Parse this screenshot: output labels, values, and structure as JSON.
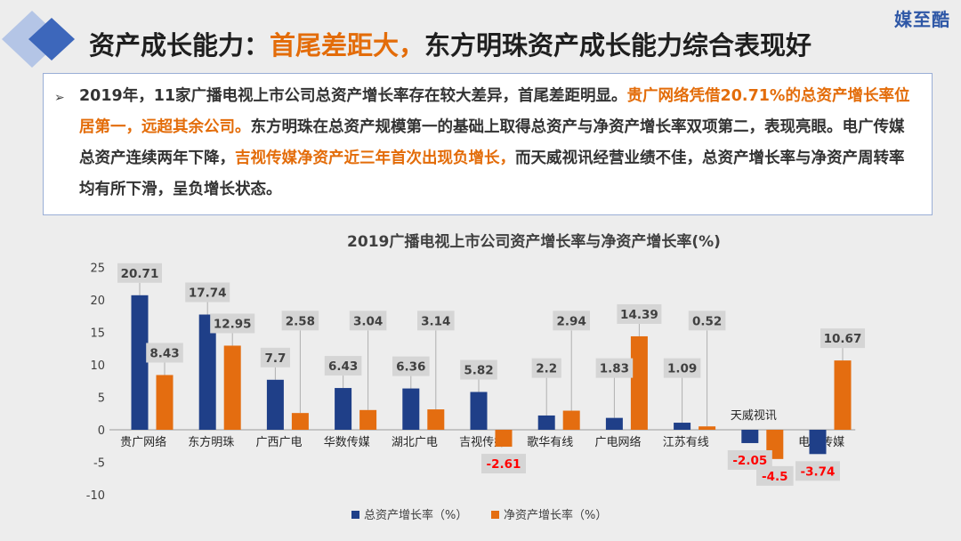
{
  "brand": "媒至酷",
  "slide_title": {
    "prefix": "资产成长能力：",
    "highlight": "首尾差距大，",
    "suffix": "东方明珠资产成长能力综合表现好"
  },
  "summary": {
    "bullet": "➢",
    "segments": [
      {
        "text": "2019年，11家广播电视上市公司总资产增长率存在较大差异，首尾差距明显。",
        "highlight": false
      },
      {
        "text": "贵广网络凭借20.71%的总资产增长率位居第一，远超其余公司。",
        "highlight": true
      },
      {
        "text": "东方明珠在总资产规模第一的基础上取得总资产与净资产增长率双项第二，表现亮眼。电广传媒总资产连续两年下降，",
        "highlight": false
      },
      {
        "text": "吉视传媒净资产近三年首次出现负增长，",
        "highlight": true
      },
      {
        "text": "而天威视讯经营业绩不佳，总资产增长率与净资产周转率均有所下滑，呈负增长状态。",
        "highlight": false
      }
    ]
  },
  "colors": {
    "total_asset": "#1f3f88",
    "net_asset": "#e46d10",
    "negative_label": "#ff0000",
    "label_box": "#d5d5d5",
    "highlight_text": "#e36c09"
  },
  "chart_data": {
    "type": "bar",
    "title": "2019广播电视上市公司资产增长率与净资产增长率(%)",
    "categories": [
      "贵广网络",
      "东方明珠",
      "广西广电",
      "华数传媒",
      "湖北广电",
      "吉视传媒",
      "歌华有线",
      "广电网络",
      "江苏有线",
      "天威视讯",
      "电广传媒"
    ],
    "series": [
      {
        "name": "总资产增长率（%）",
        "values": [
          20.71,
          17.74,
          7.7,
          6.43,
          6.36,
          5.82,
          2.2,
          1.83,
          1.09,
          -2.05,
          -3.74
        ]
      },
      {
        "name": "净资产增长率（%）",
        "values": [
          8.43,
          12.95,
          2.58,
          3.04,
          3.14,
          -2.61,
          2.94,
          14.39,
          0.52,
          -4.5,
          10.67
        ]
      }
    ],
    "ylim": [
      -10,
      25
    ],
    "yticks": [
      -10,
      -5,
      0,
      5,
      10,
      15,
      20,
      25
    ],
    "grid": false,
    "legend_position": "bottom"
  }
}
